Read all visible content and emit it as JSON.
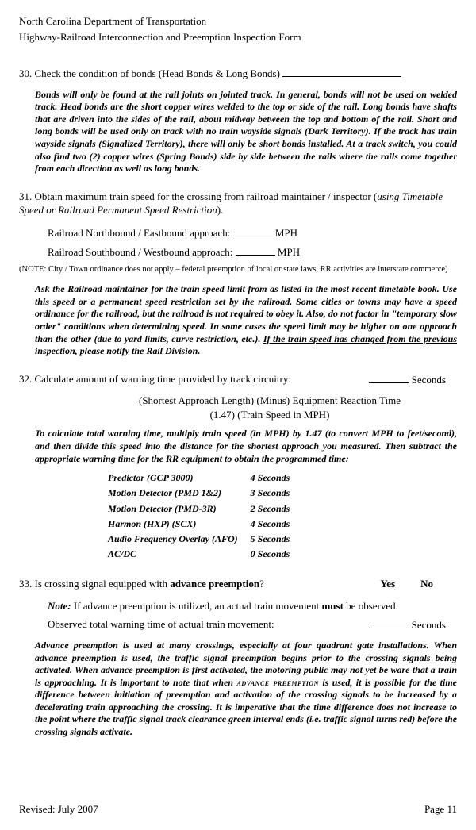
{
  "header": {
    "title": "North Carolina Department of Transportation",
    "subtitle": "Highway-Railroad Interconnection and Preemption Inspection Form"
  },
  "q30": {
    "text": "30. Check the condition of bonds (Head Bonds & Long Bonds)",
    "help": "Bonds will only be found at the rail joints on jointed track.  In general, bonds will not be used on welded track.  Head bonds are the short copper wires welded to the top or side of the rail.  Long bonds have shafts that are driven into the sides of the rail, about midway between the top and bottom of the rail.  Short and long bonds will be used only on track with no train wayside signals (Dark Territory).  If the track has train wayside signals (Signalized Territory), there will only be short bonds installed.  At a track switch, you could also find two (2) copper wires (Spring Bonds) side by side between the rails where the rails come together from each direction as well as long bonds."
  },
  "q31": {
    "text_a": "31. Obtain maximum train speed for the crossing from railroad maintainer / inspector (",
    "text_b": "using Timetable Speed or Railroad Permanent Speed Restriction",
    "text_c": ").",
    "nb": "Railroad Northbound / Eastbound approach:",
    "sb": "Railroad Southbound / Westbound approach:",
    "mph": "MPH",
    "note": "(NOTE:  City / Town ordinance does not apply – federal preemption of local or state laws, RR activities are interstate commerce)",
    "help_a": "Ask the Railroad maintainer for the train speed limit from as listed in the most recent timetable book.  Use this speed or a permanent speed restriction set by the railroad. Some cities or towns may have a speed ordinance for the railroad, but the railroad is not required to obey it.  Also, do not factor in \"temporary slow order\" conditions when determining speed.  In some cases the speed limit may be higher on one approach than the other (due to yard limits, curve restriction, etc.).  ",
    "help_u": "If the train speed has changed from the previous inspection, please notify the Rail Division."
  },
  "q32": {
    "text": "32. Calculate amount of warning time provided by track circuitry:",
    "seconds": "Seconds",
    "formula_top": "(Shortest Approach Length)",
    "formula_mid": "  (Minus) Equipment Reaction Time",
    "formula_bot": "(1.47) (Train Speed in MPH)",
    "help_intro": "To calculate total warning time, multiply train speed (in MPH) by 1.47 (to convert MPH to feet/second), and then divide this speed into the distance for the shortest approach you measured.  Then subtract the appropriate warning time for the RR equipment to obtain the programmed time:",
    "equipment": [
      {
        "name": "Predictor (GCP 3000)",
        "val": "4 Seconds"
      },
      {
        "name": "Motion Detector (PMD 1&2)",
        "val": "3 Seconds"
      },
      {
        "name": "Motion Detector (PMD-3R)",
        "val": "2 Seconds"
      },
      {
        "name": "Harmon (HXP) (SCX)",
        "val": "4 Seconds"
      },
      {
        "name": "Audio Frequency Overlay (AFO)",
        "val": "5 Seconds"
      },
      {
        "name": "AC/DC",
        "val": "0 Seconds"
      }
    ]
  },
  "q33": {
    "text_a": "33. Is crossing signal equipped with ",
    "text_b": "advance preemption",
    "text_c": "?",
    "yes": "Yes",
    "no": "No",
    "note_label": "Note:",
    "note_body_a": "  If advance preemption is utilized, an actual train movement ",
    "note_body_b": "must",
    "note_body_c": " be observed.",
    "observed": "Observed total warning time of actual train movement:",
    "seconds": "Seconds",
    "help_a": "Advance preemption is used at many crossings, especially at four quadrant gate installations.  When advance preemption is used, the traffic signal preemption begins prior to the crossing signals being activated.  When advance preemption is first activated, the motoring public may not yet be ware that a train is approaching.  It is important to note that when ",
    "help_sc": "advance preemption",
    "help_b": " is used, it is possible for the time difference between initiation of preemption and activation of the crossing signals to be increased by a decelerating train approaching the crossing.  It is imperative that the time difference does not increase to the point where the traffic signal track clearance green interval ends (i.e. traffic signal turns red) before the crossing signals activate."
  },
  "footer": {
    "revised": "Revised:  July 2007",
    "page": "Page 11"
  }
}
